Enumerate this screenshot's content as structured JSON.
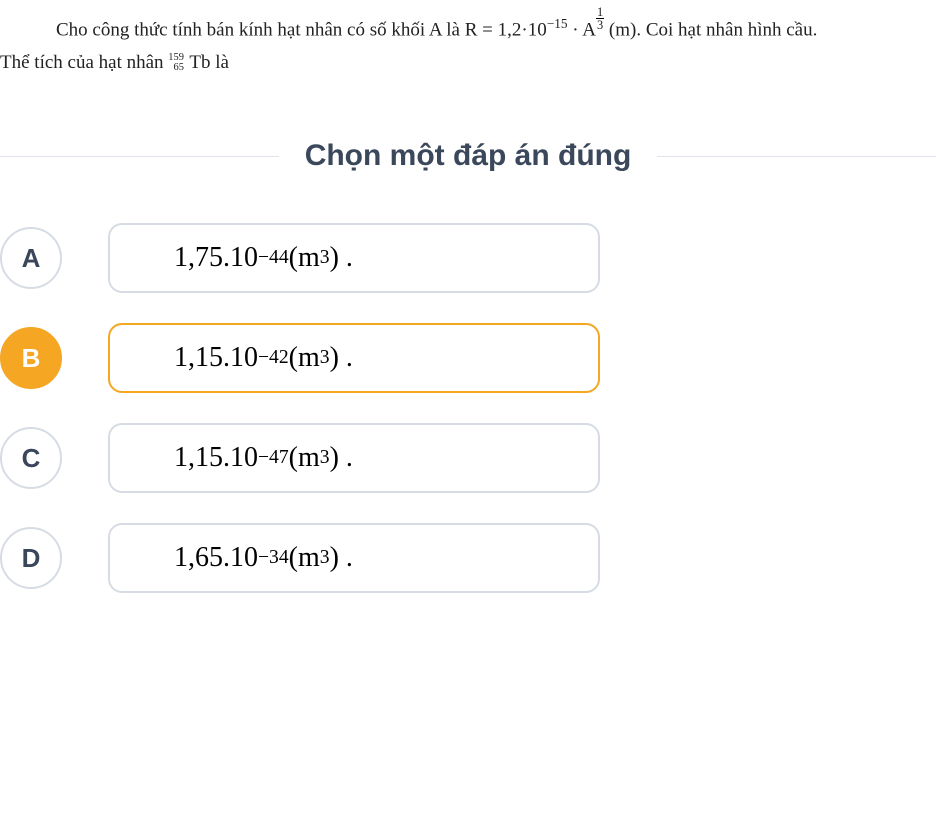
{
  "question": {
    "line1_pre": "Cho công thức tính bán kính hạt nhân có số khối A là  R = 1,2·10",
    "line1_exp": "−15",
    "line1_mid": " · A",
    "line1_frac_num": "1",
    "line1_frac_den": "3",
    "line1_post": " (m). Coi hạt nhân hình cầu.",
    "line2_pre": "Thể tích của hạt nhân ",
    "iso_top": "159",
    "iso_bot": "65",
    "iso_sym": " Tb là"
  },
  "choose_label": "Chọn một đáp án đúng",
  "options": [
    {
      "letter": "A",
      "selected": false,
      "coeff": "1,75.10",
      "exp": "−44",
      "tail": " (m",
      "cubed": "3",
      "close": ") ."
    },
    {
      "letter": "B",
      "selected": true,
      "coeff": "1,15.10",
      "exp": "−42",
      "tail": " (m",
      "cubed": "3",
      "close": ") ."
    },
    {
      "letter": "C",
      "selected": false,
      "coeff": "1,15.10",
      "exp": "−47",
      "tail": " (m",
      "cubed": "3",
      "close": ") ."
    },
    {
      "letter": "D",
      "selected": false,
      "coeff": "1,65.10",
      "exp": "−34",
      "tail": " (m",
      "cubed": "3",
      "close": ") ."
    }
  ],
  "colors": {
    "accent": "#f5a623",
    "border": "#d7dce4",
    "title": "#3b475b",
    "rule": "#dfe3ea"
  }
}
